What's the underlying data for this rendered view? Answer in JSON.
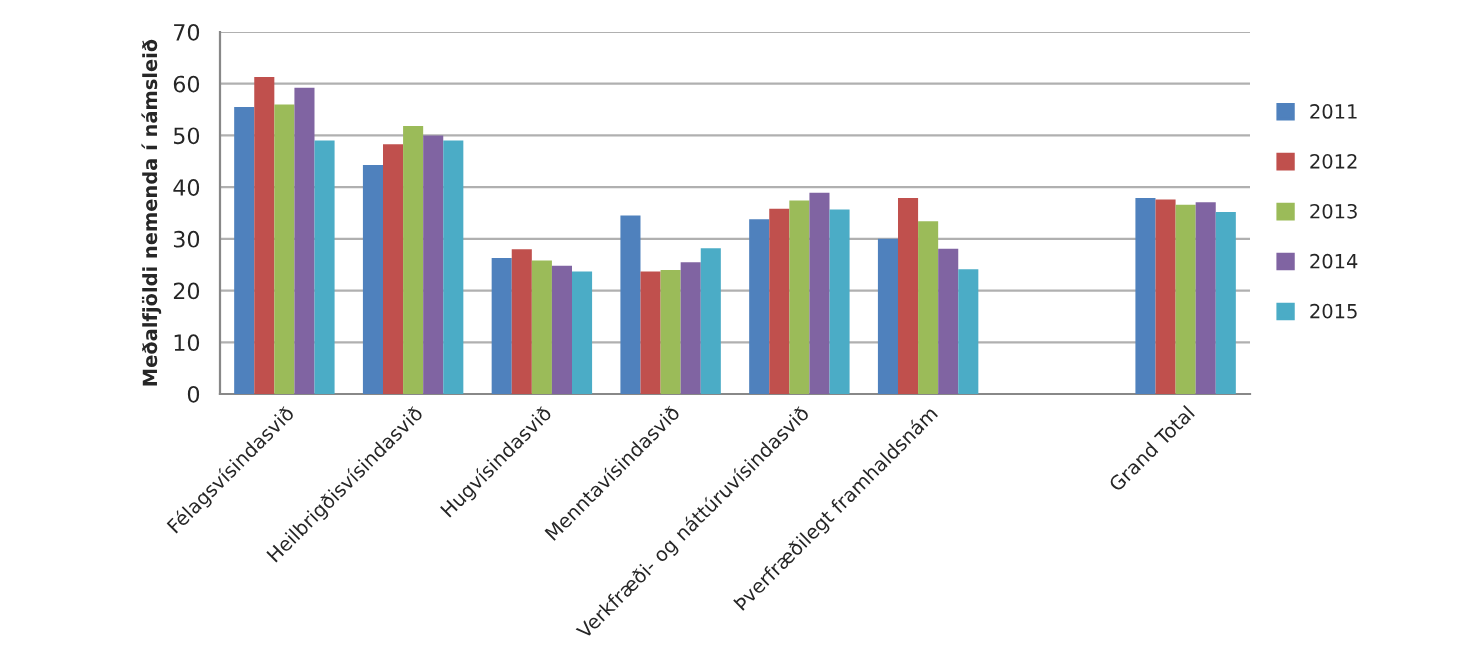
{
  "chart_data": {
    "type": "bar",
    "ylabel": "Meðalfjöldi nemenda í námsleið",
    "categories": [
      "Félagsvísindasvið",
      "Heilbrigðisvísindasvið",
      "Hugvísindasvið",
      "Menntavísindasvið",
      "Verkfræði- og náttúruvísindasvið",
      "Þverfræðilegt framhaldsnám",
      null,
      "Grand Total"
    ],
    "series": [
      {
        "name": "2011",
        "color": "#4f81bd",
        "values": [
          55.5,
          44.3,
          26.3,
          34.5,
          33.8,
          30.0,
          null,
          37.9
        ]
      },
      {
        "name": "2012",
        "color": "#c0504d",
        "values": [
          61.3,
          48.3,
          28.0,
          23.7,
          35.8,
          37.9,
          null,
          37.6
        ]
      },
      {
        "name": "2013",
        "color": "#9bbb59",
        "values": [
          56.0,
          51.8,
          25.8,
          24.0,
          37.4,
          33.4,
          null,
          36.6
        ]
      },
      {
        "name": "2014",
        "color": "#8064a2",
        "values": [
          59.2,
          50.0,
          24.8,
          25.5,
          38.9,
          28.1,
          null,
          37.1
        ]
      },
      {
        "name": "2015",
        "color": "#4bacc6",
        "values": [
          49.0,
          49.0,
          23.7,
          28.2,
          35.7,
          24.1,
          null,
          35.2
        ]
      }
    ],
    "ylim": [
      0,
      70
    ],
    "yticks": [
      0,
      10,
      20,
      30,
      40,
      50,
      60,
      70
    ],
    "grid": "y",
    "legend": "right"
  }
}
